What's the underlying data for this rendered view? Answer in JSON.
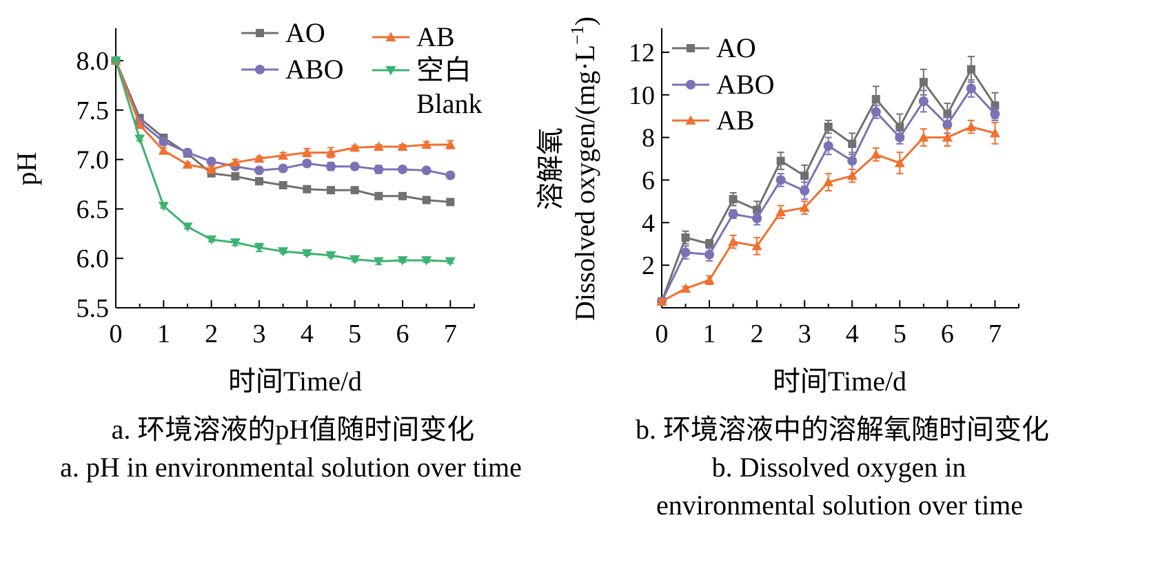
{
  "chart_data": [
    {
      "type": "line",
      "caption_cn": "a. 环境溶液的pH值随时间变化",
      "caption_en": "a. pH in environmental solution over time",
      "xlabel": "时间Time/d",
      "ylabel": "pH",
      "xlim": [
        0,
        7.5
      ],
      "ylim": [
        5.5,
        8.3
      ],
      "xticks": [
        0,
        1,
        2,
        3,
        4,
        5,
        6,
        7
      ],
      "yticks": [
        5.5,
        6.0,
        6.5,
        7.0,
        7.5,
        8.0
      ],
      "ytick_labels": [
        "5.5",
        "6.0",
        "6.5",
        "7.0",
        "7.5",
        "8.0"
      ],
      "grid": false,
      "legend_position": "top-center",
      "x": [
        0,
        0.5,
        1,
        1.5,
        2,
        2.5,
        3,
        3.5,
        4,
        4.5,
        5,
        5.5,
        6,
        6.5,
        7
      ],
      "series": [
        {
          "name": "AO",
          "color": "#707070",
          "marker": "square",
          "values": [
            8.0,
            7.42,
            7.22,
            7.06,
            6.86,
            6.83,
            6.78,
            6.74,
            6.7,
            6.69,
            6.69,
            6.63,
            6.63,
            6.59,
            6.57
          ],
          "errors": [
            0.01,
            0.03,
            0.03,
            0.03,
            0.03,
            0.03,
            0.02,
            0.02,
            0.01,
            0.02,
            0.03,
            0.01,
            0.02,
            0.01,
            0.02
          ]
        },
        {
          "name": "ABO",
          "color": "#7B72B5",
          "marker": "circle",
          "values": [
            8.0,
            7.38,
            7.18,
            7.07,
            6.98,
            6.93,
            6.89,
            6.91,
            6.96,
            6.93,
            6.93,
            6.9,
            6.9,
            6.89,
            6.84
          ],
          "errors": [
            0.01,
            0.03,
            0.03,
            0.03,
            0.02,
            0.03,
            0.02,
            0.03,
            0.03,
            0.04,
            0.02,
            0.04,
            0.02,
            0.02,
            0.03
          ]
        },
        {
          "name": "AB",
          "color": "#F07030",
          "marker": "triangle-up",
          "values": [
            8.0,
            7.35,
            7.09,
            6.95,
            6.9,
            6.97,
            7.01,
            7.04,
            7.07,
            7.07,
            7.12,
            7.13,
            7.13,
            7.15,
            7.15
          ],
          "errors": [
            0.01,
            0.03,
            0.03,
            0.02,
            0.03,
            0.03,
            0.02,
            0.03,
            0.04,
            0.05,
            0.02,
            0.02,
            0.02,
            0.03,
            0.04
          ]
        },
        {
          "name": "空白",
          "name_line2": "Blank",
          "color": "#3CB371",
          "marker": "triangle-down",
          "values": [
            8.0,
            7.21,
            6.53,
            6.32,
            6.19,
            6.16,
            6.11,
            6.07,
            6.05,
            6.03,
            5.99,
            5.97,
            5.98,
            5.98,
            5.97
          ],
          "errors": [
            0.01,
            0.02,
            0.02,
            0.02,
            0.02,
            0.03,
            0.04,
            0.02,
            0.02,
            0.02,
            0.02,
            0.03,
            0.02,
            0.02,
            0.02
          ]
        }
      ]
    },
    {
      "type": "line",
      "caption_cn": "b. 环境溶液中的溶解氧随时间变化",
      "caption_en_line1": "b. Dissolved oxygen in",
      "caption_en_line2": "environmental solution over time",
      "xlabel": "时间Time/d",
      "ylabel_cn": "溶解氧",
      "ylabel_en": "Dissolved oxygen/(mg·L",
      "ylabel_sup": "−1",
      "ylabel_end": ")",
      "xlim": [
        0,
        7.5
      ],
      "ylim": [
        0,
        13
      ],
      "xticks": [
        0,
        1,
        2,
        3,
        4,
        5,
        6,
        7
      ],
      "yticks": [
        2,
        4,
        6,
        8,
        10,
        12
      ],
      "ytick_labels": [
        "2",
        "4",
        "6",
        "8",
        "10",
        "12"
      ],
      "grid": false,
      "legend_position": "top-left",
      "x": [
        0,
        0.5,
        1,
        1.5,
        2,
        2.5,
        3,
        3.5,
        4,
        4.5,
        5,
        5.5,
        6,
        6.5,
        7
      ],
      "series": [
        {
          "name": "AO",
          "color": "#707070",
          "marker": "square",
          "values": [
            0.3,
            3.3,
            3.0,
            5.1,
            4.6,
            6.9,
            6.2,
            8.5,
            7.7,
            9.8,
            8.5,
            10.6,
            9.1,
            11.2,
            9.5
          ],
          "errors": [
            0.1,
            0.3,
            0.2,
            0.3,
            0.4,
            0.4,
            0.5,
            0.3,
            0.5,
            0.6,
            0.6,
            0.6,
            0.5,
            0.6,
            0.6
          ]
        },
        {
          "name": "ABO",
          "color": "#7B72B5",
          "marker": "circle",
          "values": [
            0.3,
            2.6,
            2.5,
            4.4,
            4.2,
            6.0,
            5.5,
            7.6,
            6.9,
            9.2,
            8.0,
            9.7,
            8.6,
            10.3,
            9.1
          ],
          "errors": [
            0.1,
            0.3,
            0.3,
            0.2,
            0.3,
            0.3,
            0.4,
            0.4,
            0.4,
            0.3,
            0.3,
            0.5,
            0.4,
            0.4,
            0.3
          ]
        },
        {
          "name": "AB",
          "color": "#F07030",
          "marker": "triangle-up",
          "values": [
            0.3,
            0.9,
            1.3,
            3.1,
            2.9,
            4.5,
            4.7,
            5.9,
            6.2,
            7.2,
            6.8,
            8.0,
            8.0,
            8.5,
            8.2
          ],
          "errors": [
            0.1,
            0.1,
            0.2,
            0.3,
            0.4,
            0.3,
            0.3,
            0.4,
            0.3,
            0.3,
            0.5,
            0.4,
            0.4,
            0.3,
            0.5
          ]
        }
      ]
    }
  ]
}
